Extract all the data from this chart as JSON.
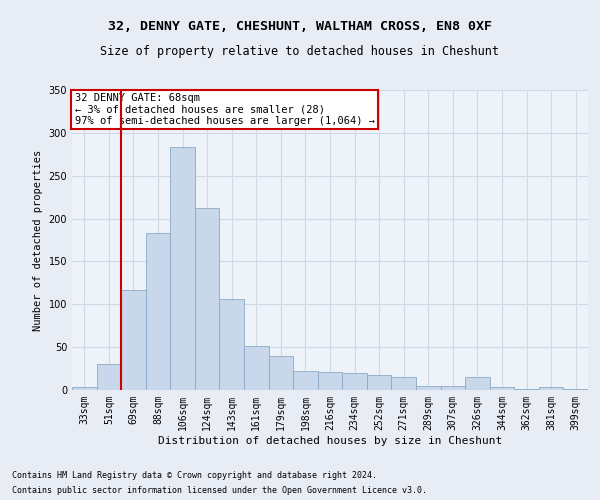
{
  "title1": "32, DENNY GATE, CHESHUNT, WALTHAM CROSS, EN8 0XF",
  "title2": "Size of property relative to detached houses in Cheshunt",
  "xlabel": "Distribution of detached houses by size in Cheshunt",
  "ylabel": "Number of detached properties",
  "footnote1": "Contains HM Land Registry data © Crown copyright and database right 2024.",
  "footnote2": "Contains public sector information licensed under the Open Government Licence v3.0.",
  "annotation_line1": "32 DENNY GATE: 68sqm",
  "annotation_line2": "← 3% of detached houses are smaller (28)",
  "annotation_line3": "97% of semi-detached houses are larger (1,064) →",
  "bar_color": "#c8d8ea",
  "bar_edge_color": "#8aaac8",
  "vline_color": "#cc0000",
  "vline_x_idx": 2,
  "categories": [
    "33sqm",
    "51sqm",
    "69sqm",
    "88sqm",
    "106sqm",
    "124sqm",
    "143sqm",
    "161sqm",
    "179sqm",
    "198sqm",
    "216sqm",
    "234sqm",
    "252sqm",
    "271sqm",
    "289sqm",
    "307sqm",
    "326sqm",
    "344sqm",
    "362sqm",
    "381sqm",
    "399sqm"
  ],
  "values": [
    4,
    30,
    117,
    183,
    284,
    212,
    106,
    51,
    40,
    22,
    21,
    20,
    17,
    15,
    5,
    5,
    15,
    3,
    1,
    3,
    1
  ],
  "ylim": [
    0,
    350
  ],
  "yticks": [
    0,
    50,
    100,
    150,
    200,
    250,
    300,
    350
  ],
  "bg_color": "#e8edf5",
  "plot_bg_color": "#eef3fa",
  "grid_color": "#d0d8e8",
  "title1_fontsize": 9.5,
  "title2_fontsize": 8.5,
  "xlabel_fontsize": 8,
  "ylabel_fontsize": 7.5,
  "tick_fontsize": 7,
  "annotation_fontsize": 7.5,
  "footnote_fontsize": 6
}
